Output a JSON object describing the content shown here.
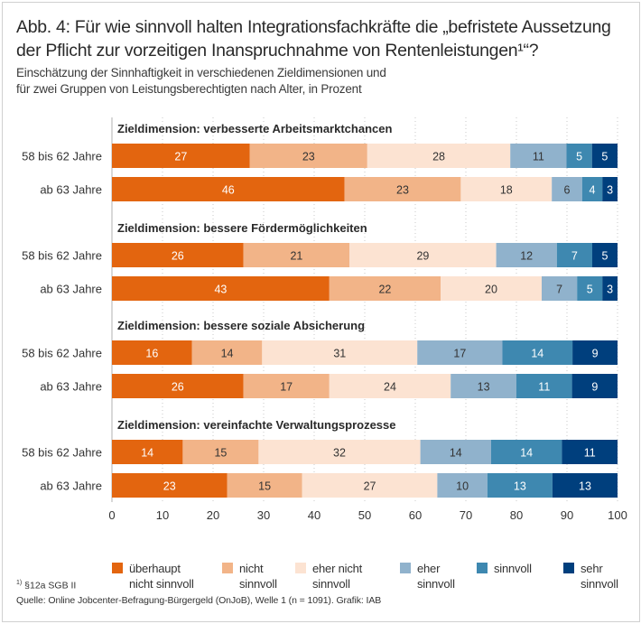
{
  "title_line1": "Abb. 4: Für wie sinnvoll halten Integrationsfachkräfte die „befristete Aussetzung",
  "title_line2": "der Pflicht zur vorzeitigen Inanspruchnahme von Rentenleistungen¹“?",
  "subtitle_line1": "Einschätzung der Sinnhaftigkeit in verschiedenen Zieldimensionen und",
  "subtitle_line2": "für zwei Gruppen von Leistungsberechtigten nach Alter, in Prozent",
  "footnote_mark": "1)",
  "footnote_text": " §12a SGB II",
  "source": "Quelle: Online Jobcenter-Befragung-Bürgergeld (OnJoB), Welle 1 (n = 1091). Grafik: IAB",
  "chart_data": {
    "type": "bar",
    "orientation": "horizontal",
    "stacked": true,
    "unit": "Prozent",
    "xlim": [
      0,
      100
    ],
    "xticks": [
      0,
      10,
      20,
      30,
      40,
      50,
      60,
      70,
      80,
      90,
      100
    ],
    "grid": true,
    "legend_position": "bottom",
    "series": [
      {
        "name": "überhaupt nicht sinnvoll",
        "label": "überhaupt\nnicht sinnvoll",
        "color": "#e3650f",
        "text_color": "#ffffff"
      },
      {
        "name": "nicht sinnvoll",
        "label": "nicht\nsinnvoll",
        "color": "#f2b488",
        "text_color": "#333333"
      },
      {
        "name": "eher nicht sinnvoll",
        "label": "eher nicht\nsinnvoll",
        "color": "#fce3d2",
        "text_color": "#333333"
      },
      {
        "name": "eher sinnvoll",
        "label": "eher\nsinnvoll",
        "color": "#90b2cc",
        "text_color": "#333333"
      },
      {
        "name": "sinnvoll",
        "label": "sinnvoll",
        "color": "#3e88b0",
        "text_color": "#ffffff"
      },
      {
        "name": "sehr sinnvoll",
        "label": "sehr\nsinnvoll",
        "color": "#003f7d",
        "text_color": "#ffffff"
      }
    ],
    "groups": [
      {
        "title": "Zieldimension: verbesserte Arbeitsmarktchancen",
        "rows": [
          {
            "label": "58 bis 62 Jahre",
            "values": [
              27,
              23,
              28,
              11,
              5,
              5
            ]
          },
          {
            "label": "ab 63 Jahre",
            "values": [
              46,
              23,
              18,
              6,
              4,
              3
            ]
          }
        ]
      },
      {
        "title": "Zieldimension: bessere Fördermöglichkeiten",
        "rows": [
          {
            "label": "58 bis 62 Jahre",
            "values": [
              26,
              21,
              29,
              12,
              7,
              5
            ]
          },
          {
            "label": "ab 63 Jahre",
            "values": [
              43,
              22,
              20,
              7,
              5,
              3
            ]
          }
        ]
      },
      {
        "title": "Zieldimension: bessere soziale Absicherung",
        "rows": [
          {
            "label": "58 bis 62 Jahre",
            "values": [
              16,
              14,
              31,
              17,
              14,
              9
            ]
          },
          {
            "label": "ab 63 Jahre",
            "values": [
              26,
              17,
              24,
              13,
              11,
              9
            ]
          }
        ]
      },
      {
        "title": "Zieldimension: vereinfachte Verwaltungsprozesse",
        "rows": [
          {
            "label": "58 bis 62 Jahre",
            "values": [
              14,
              15,
              32,
              14,
              14,
              11
            ]
          },
          {
            "label": "ab 63 Jahre",
            "values": [
              23,
              15,
              27,
              10,
              13,
              13
            ]
          }
        ]
      }
    ]
  }
}
